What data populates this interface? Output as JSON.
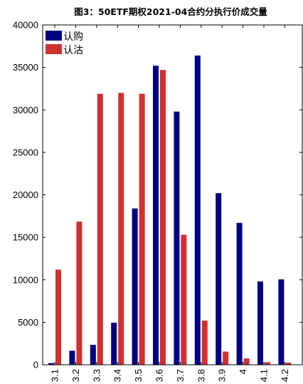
{
  "chart_data": {
    "type": "bar",
    "title": "图3：50ETF期权2021-04合约分执行价成交量",
    "xlabel": "",
    "ylabel": "",
    "categories": [
      "3.1",
      "3.2",
      "3.3",
      "3.4",
      "3.5",
      "3.6",
      "3.7",
      "3.8",
      "3.9",
      "4",
      "4.1",
      "4.2"
    ],
    "series": [
      {
        "name": "认购",
        "color": "#000080",
        "values": [
          200,
          1650,
          2350,
          4950,
          18400,
          35200,
          29800,
          36400,
          20200,
          16700,
          9800,
          10050
        ]
      },
      {
        "name": "认沽",
        "color": "#d03030",
        "values": [
          11200,
          16850,
          31900,
          32000,
          31900,
          34700,
          15300,
          5200,
          1550,
          750,
          300,
          250
        ]
      }
    ],
    "ylim": [
      0,
      40000
    ],
    "yticks": [
      0,
      5000,
      10000,
      15000,
      20000,
      25000,
      30000,
      35000,
      40000
    ],
    "legend": "top-left",
    "grid": false
  }
}
